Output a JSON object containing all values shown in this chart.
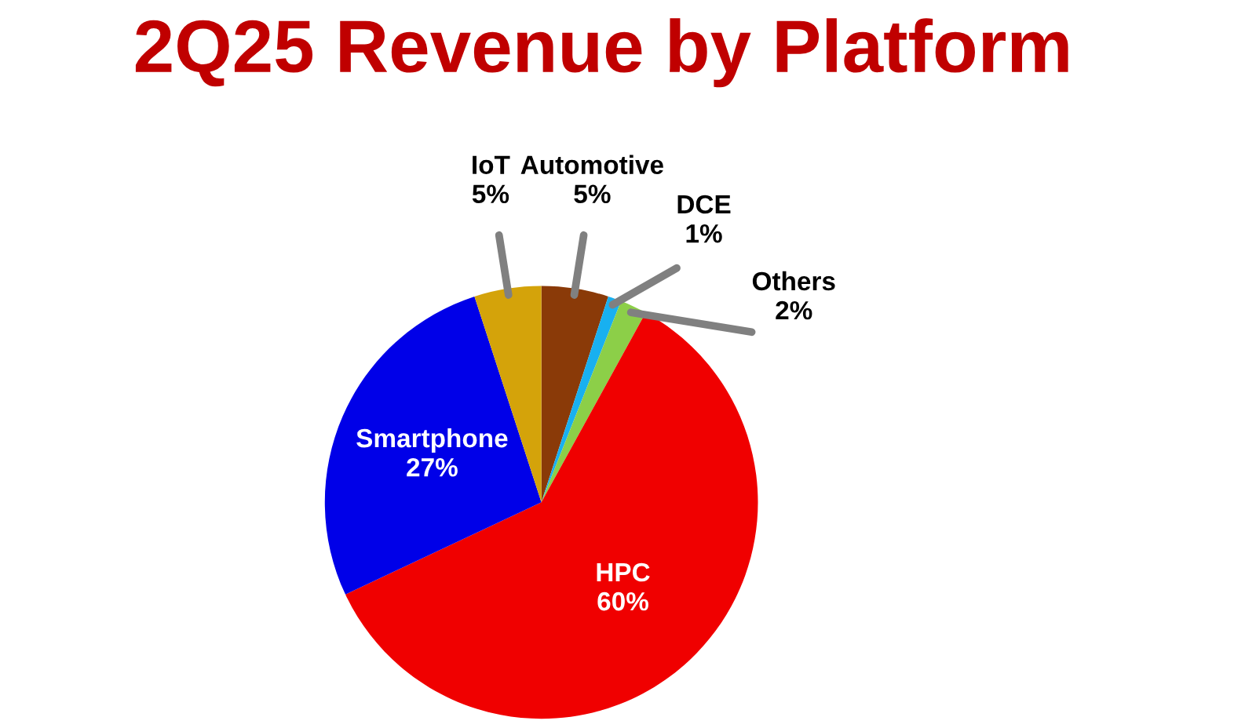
{
  "chart_data": {
    "type": "pie",
    "title": "2Q25 Revenue by Platform",
    "categories": [
      "Automotive",
      "DCE",
      "Others",
      "HPC",
      "Smartphone",
      "IoT"
    ],
    "values": [
      5,
      1,
      2,
      60,
      27,
      5
    ],
    "value_labels": [
      "5%",
      "1%",
      "2%",
      "60%",
      "27%",
      "5%"
    ],
    "colors": [
      "#8a3a08",
      "#18b0f0",
      "#8ccf48",
      "#f00000",
      "#0000e8",
      "#d4a30a"
    ]
  }
}
